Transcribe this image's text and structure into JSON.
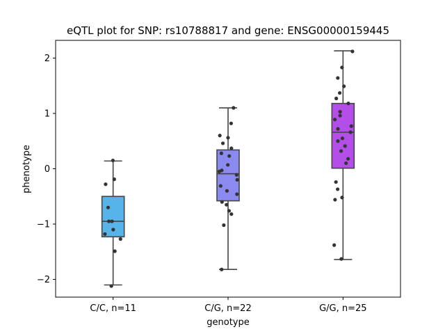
{
  "chart_data": {
    "type": "box",
    "title": "eQTL plot for SNP: rs10788817 and gene: ENSG00000159445",
    "xlabel": "genotype",
    "ylabel": "phenotype",
    "ylim": [
      -2.32,
      2.32
    ],
    "yticks": [
      -2,
      -1,
      0,
      1,
      2
    ],
    "ytick_labels": [
      "−2",
      "−1",
      "0",
      "1",
      "2"
    ],
    "grid": false,
    "categories": [
      "C/C, n=11",
      "C/G, n=22",
      "G/G, n=25"
    ],
    "boxes": [
      {
        "category": "C/C, n=11",
        "color": "#56b4e9",
        "whisker_low": -2.1,
        "q1": -1.23,
        "median": -0.95,
        "q3": -0.5,
        "whisker_high": 0.14
      },
      {
        "category": "C/G, n=22",
        "color": "#8a8af0",
        "whisker_low": -1.82,
        "q1": -0.58,
        "median": -0.09,
        "q3": 0.34,
        "whisker_high": 1.1
      },
      {
        "category": "G/G, n=25",
        "color": "#b44ee8",
        "whisker_low": -1.64,
        "q1": 0.01,
        "median": 0.66,
        "q3": 1.18,
        "whisker_high": 2.13
      }
    ],
    "points": [
      {
        "category": "C/C, n=11",
        "values": [
          0.15,
          -0.19,
          -0.28,
          -0.7,
          -0.95,
          -1.1,
          -1.18,
          -1.27,
          -1.49,
          -2.12,
          -0.95
        ]
      },
      {
        "category": "C/G, n=22",
        "values": [
          1.1,
          0.82,
          0.6,
          0.56,
          0.46,
          0.37,
          0.28,
          0.23,
          0.07,
          -0.03,
          -0.05,
          -0.11,
          -0.2,
          -0.31,
          -0.4,
          -0.46,
          -0.6,
          -0.65,
          -0.76,
          -0.82,
          -1.02,
          -1.82
        ]
      },
      {
        "category": "G/G, n=25",
        "values": [
          2.12,
          1.83,
          1.64,
          1.49,
          1.37,
          1.27,
          1.18,
          1.03,
          0.96,
          0.89,
          0.77,
          0.72,
          0.66,
          0.55,
          0.5,
          0.41,
          0.32,
          0.18,
          0.1,
          -0.24,
          -0.37,
          -0.52,
          -0.56,
          -1.38,
          -1.63
        ]
      }
    ]
  }
}
